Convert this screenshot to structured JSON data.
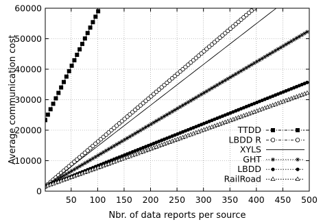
{
  "chart_data": {
    "type": "line",
    "title": "",
    "xlabel": "Nbr. of data reports per source",
    "ylabel": "Average communication cost",
    "xlim": [
      1,
      500
    ],
    "ylim": [
      0,
      60000
    ],
    "xticks": [
      50,
      100,
      150,
      200,
      250,
      300,
      350,
      400,
      450,
      500
    ],
    "yticks": [
      0,
      10000,
      20000,
      30000,
      40000,
      50000,
      60000
    ],
    "xtick_labels": [
      "50",
      "100",
      "150",
      "200",
      "250",
      "300",
      "350",
      "400",
      "450",
      "500"
    ],
    "ytick_labels": [
      "0",
      "10000",
      "20000",
      "30000",
      "40000",
      "50000",
      "60000"
    ],
    "grid": true,
    "legend_position": "bottom-right",
    "series": [
      {
        "name": "TTDD",
        "marker": "filled-square",
        "line": "dash-dot",
        "x_start": 1,
        "y_start": 23300,
        "slope": 357,
        "x_step": 5
      },
      {
        "name": "LBDD R",
        "marker": "open-circle",
        "line": "dash-dot",
        "x_start": 1,
        "y_start": 1500,
        "slope": 148,
        "x_step": 5
      },
      {
        "name": "XYLS",
        "marker": "none",
        "line": "solid",
        "x_start": 1,
        "y_start": 1500,
        "slope": 134,
        "x_step": 5
      },
      {
        "name": "GHT",
        "marker": "star",
        "line": "dotted",
        "x_start": 1,
        "y_start": 1500,
        "slope": 102.5,
        "x_step": 5
      },
      {
        "name": "LBDD",
        "marker": "filled-circle",
        "line": "dotted",
        "x_start": 1,
        "y_start": 1500,
        "slope": 69,
        "x_step": 5
      },
      {
        "name": "RailRoad",
        "marker": "open-triangle",
        "line": "dotted",
        "x_start": 1,
        "y_start": 1500,
        "slope": 62,
        "x_step": 5
      }
    ]
  }
}
